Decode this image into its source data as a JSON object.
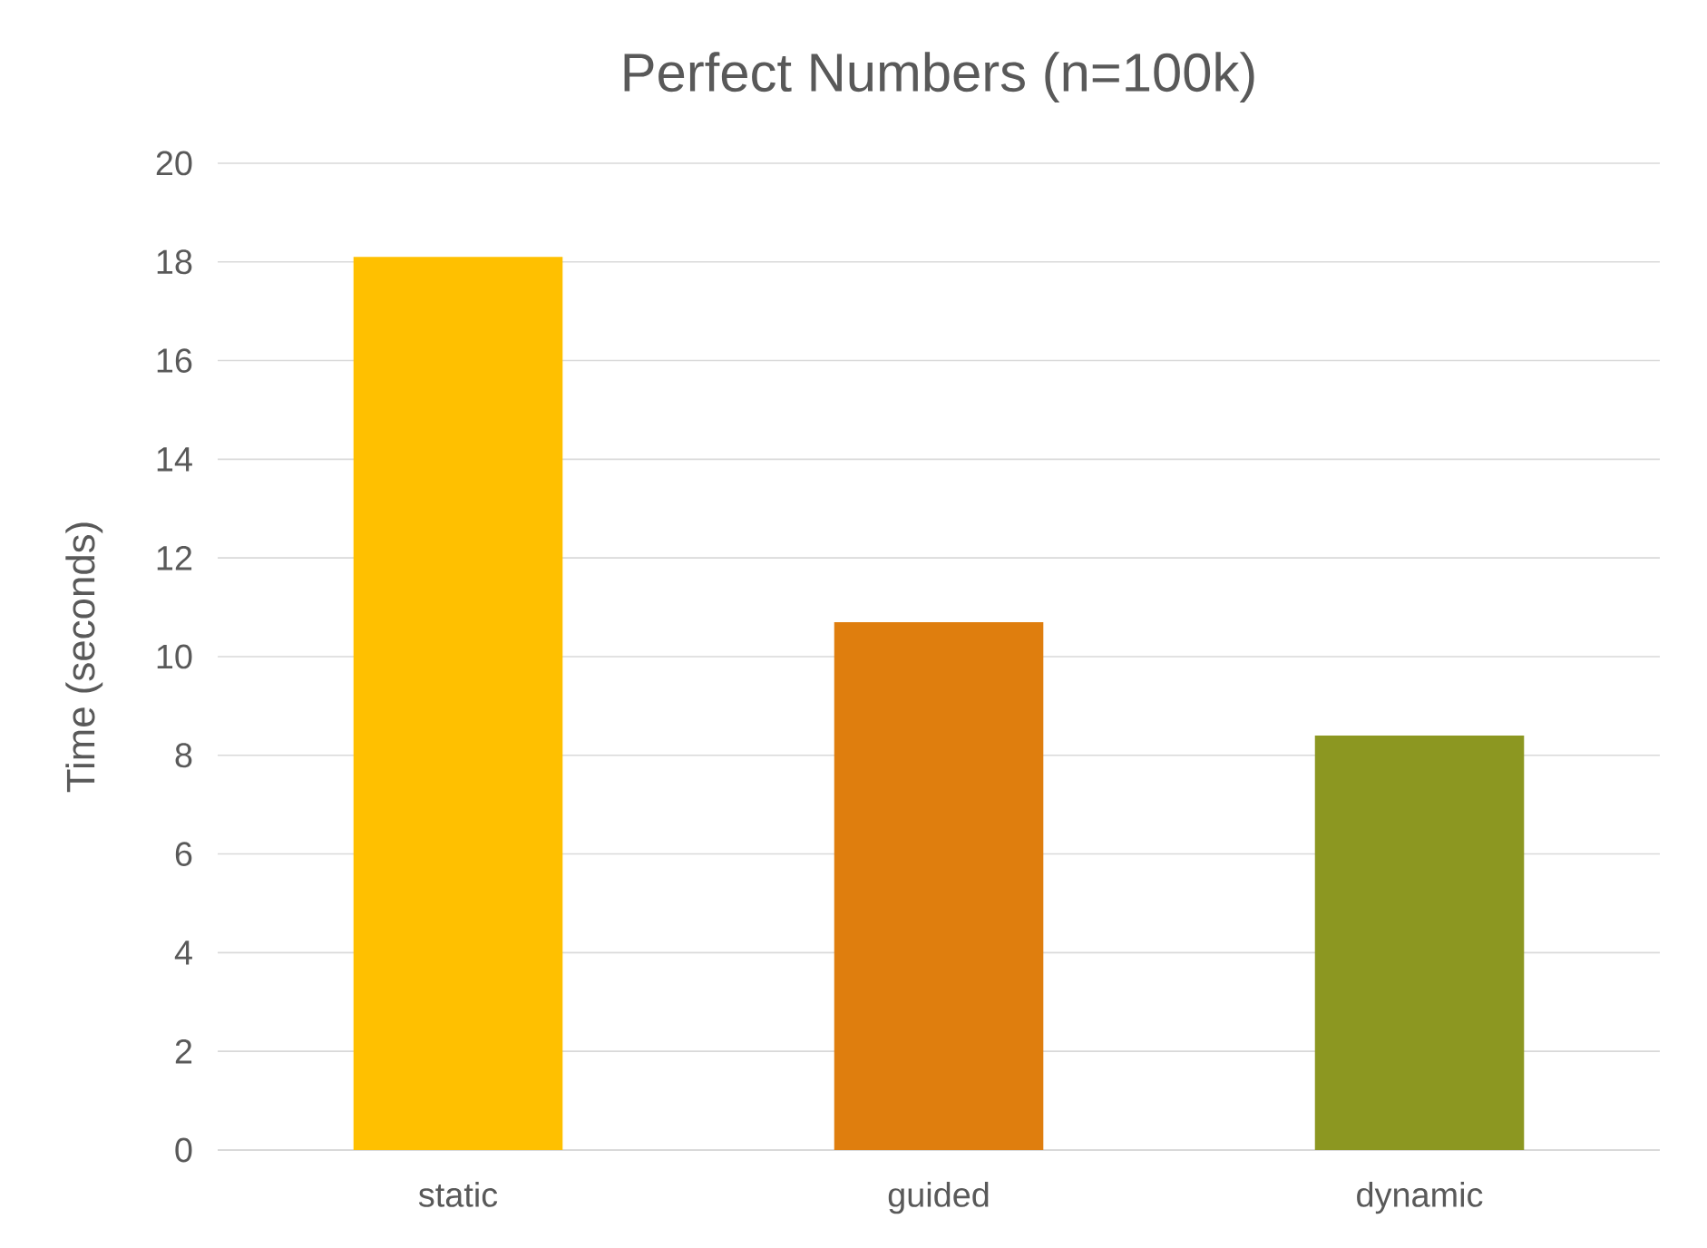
{
  "chart_data": {
    "type": "bar",
    "title": "Perfect Numbers (n=100k)",
    "ylabel": "Time (seconds)",
    "categories": [
      "static",
      "guided",
      "dynamic"
    ],
    "values": [
      18.1,
      10.7,
      8.4
    ],
    "colors": [
      "#ffc000",
      "#df7e0e",
      "#8c9721"
    ],
    "ylim": [
      0,
      20
    ],
    "yticks": [
      0,
      2,
      4,
      6,
      8,
      10,
      12,
      14,
      16,
      18,
      20
    ],
    "grid": "y"
  }
}
